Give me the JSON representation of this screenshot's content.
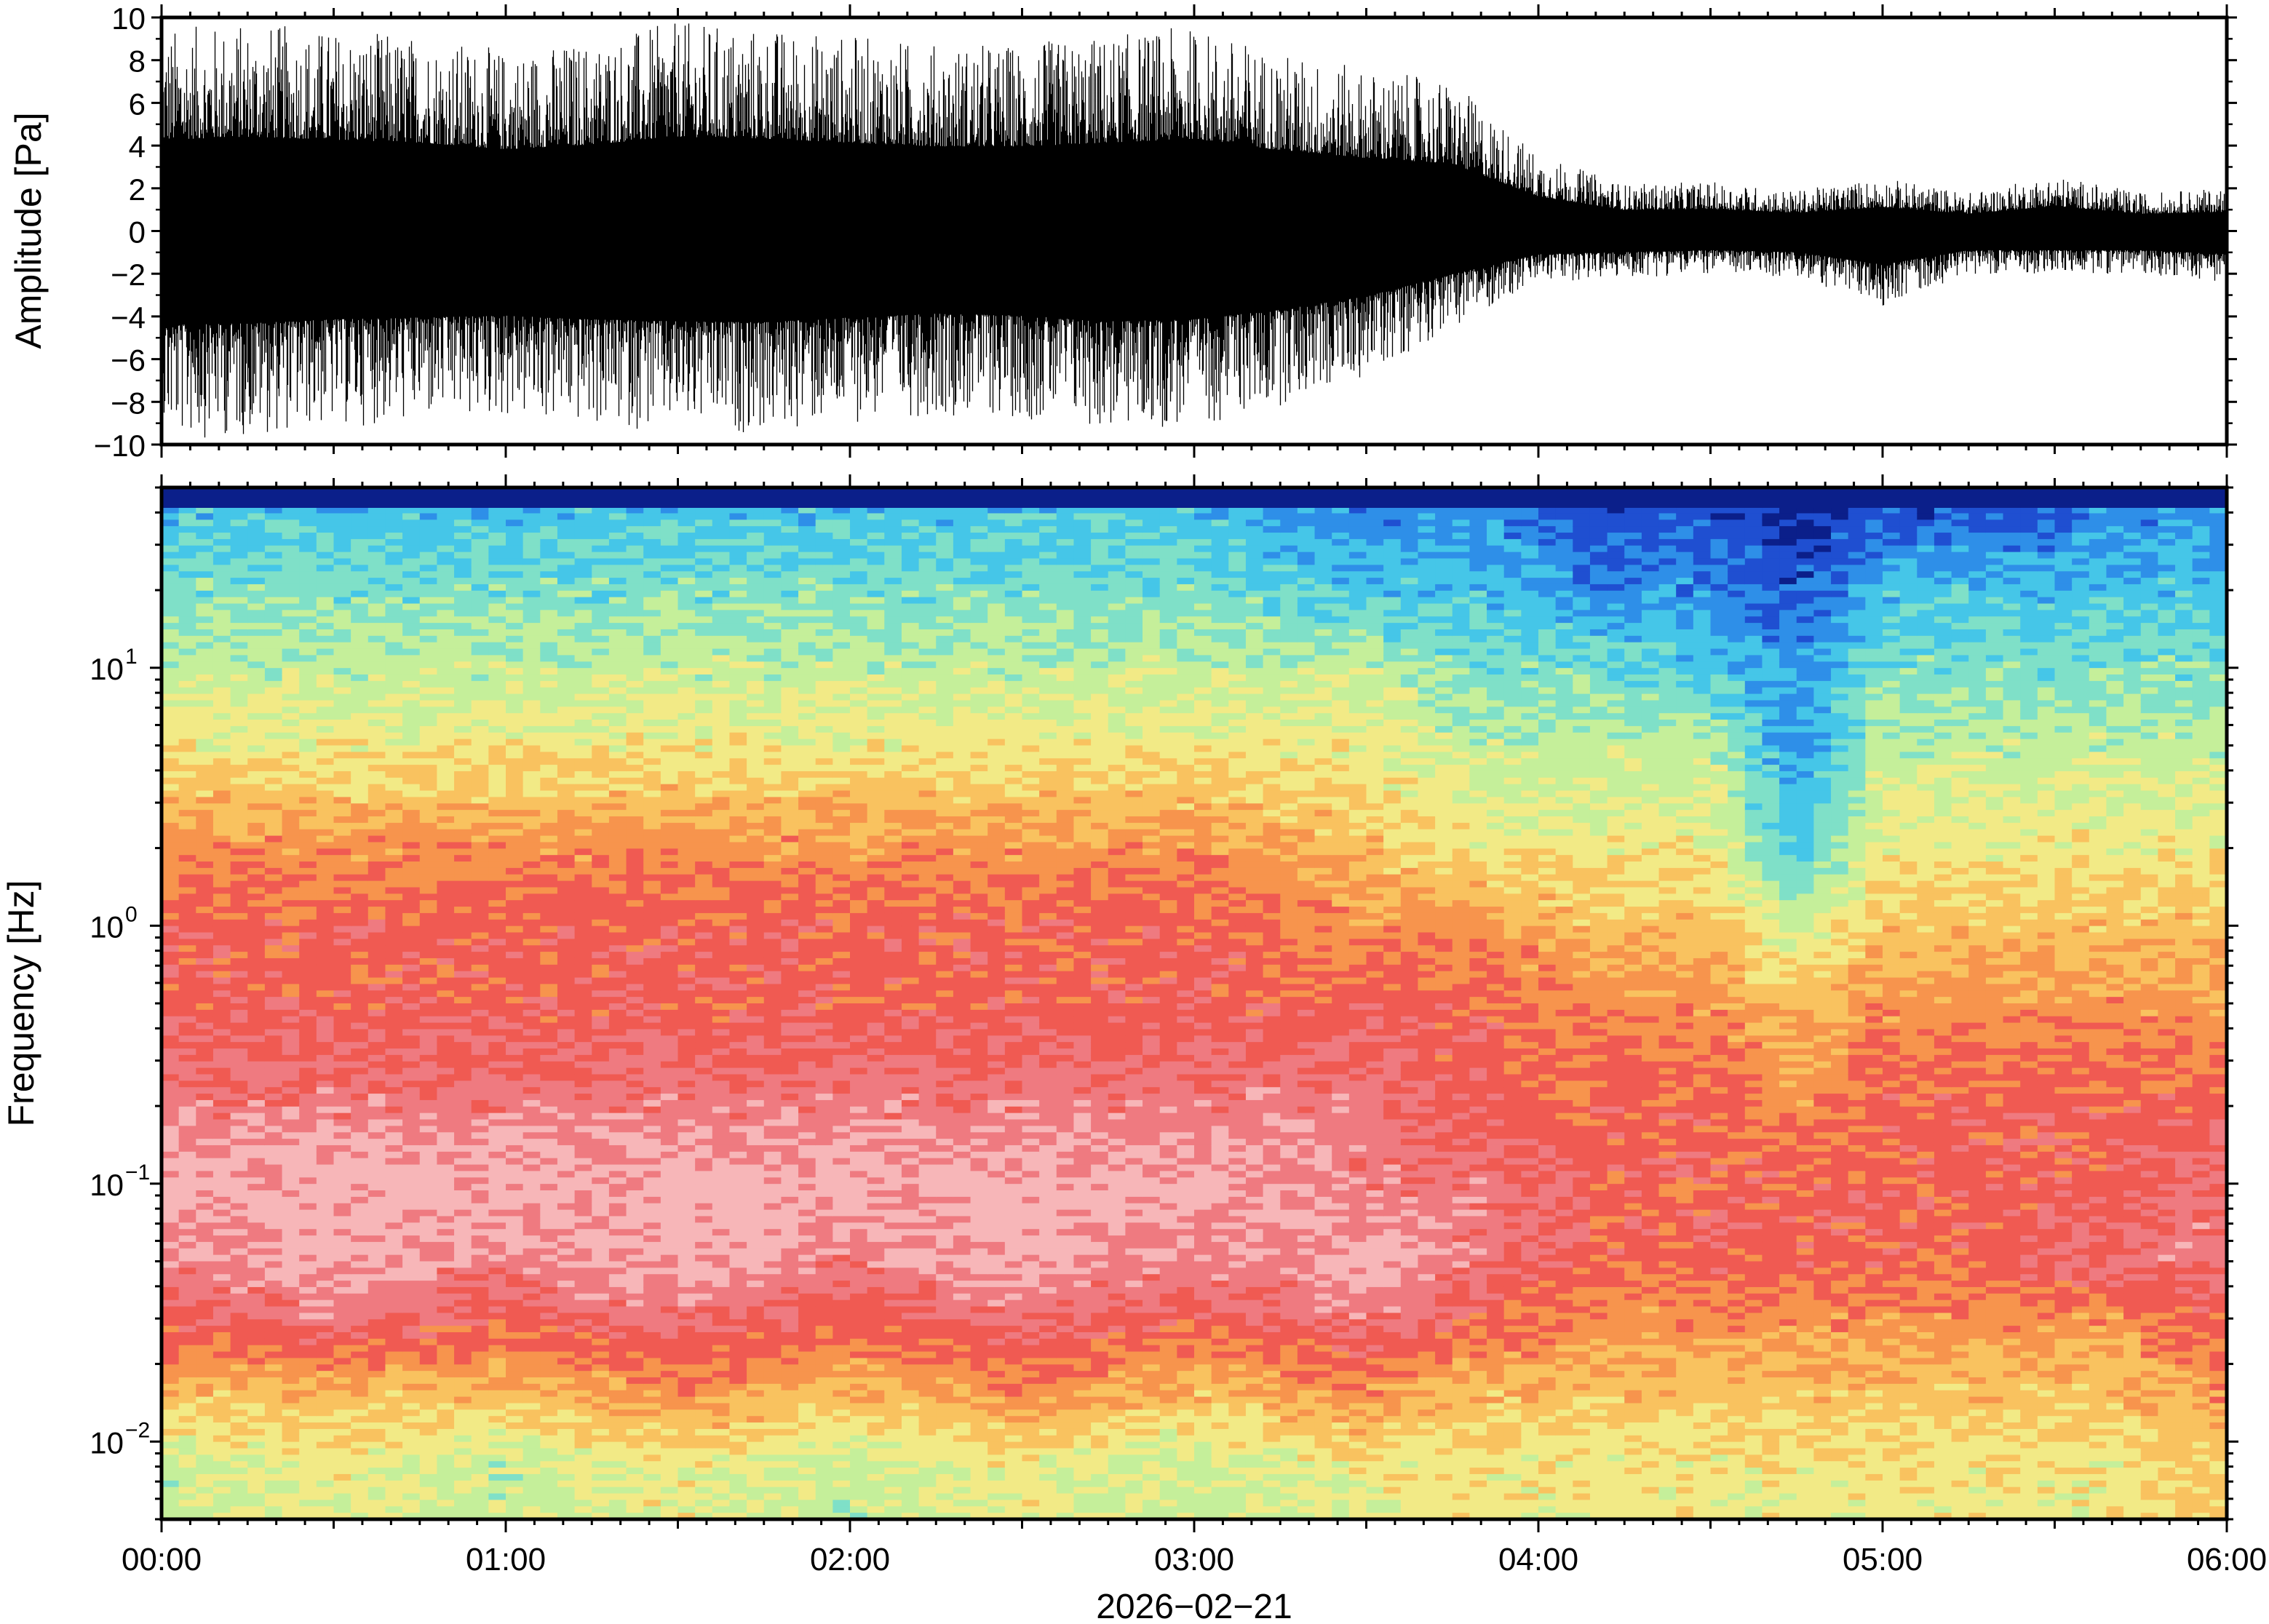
{
  "chart_data": [
    {
      "type": "line",
      "title": "",
      "xlabel": "",
      "ylabel": "Amplitude [Pa]",
      "xlim": [
        "00:00",
        "06:00"
      ],
      "ylim": [
        -10,
        10
      ],
      "yticks": [
        -10,
        -8,
        -6,
        -4,
        -2,
        0,
        2,
        4,
        6,
        8,
        10
      ],
      "ytick_labels": [
        "−10",
        "−8",
        "−6",
        "−4",
        "−2",
        "0",
        "2",
        "4",
        "6",
        "8",
        "10"
      ],
      "grid": false,
      "series": [
        {
          "x": [
            "00:00",
            "00:15",
            "00:30",
            "00:45",
            "01:00",
            "01:15",
            "01:30",
            "01:45",
            "02:00",
            "02:15",
            "02:30",
            "02:45",
            "03:00",
            "03:15",
            "03:30",
            "03:45",
            "04:00",
            "04:15",
            "04:30",
            "04:45",
            "05:00",
            "05:15",
            "05:30",
            "05:45",
            "06:00"
          ],
          "envelope_max": [
            9.5,
            9.8,
            9.5,
            9.2,
            8.5,
            9.0,
            9.8,
            9.6,
            9.2,
            8.8,
            8.8,
            9.2,
            9.6,
            8.4,
            7.6,
            7.0,
            3.6,
            2.2,
            2.3,
            1.9,
            2.5,
            1.8,
            2.6,
            1.8,
            2.0
          ],
          "envelope_min": [
            -9.8,
            -9.6,
            -9.2,
            -9.0,
            -8.8,
            -9.2,
            -9.4,
            -9.5,
            -9.0,
            -8.6,
            -8.8,
            -9.4,
            -9.2,
            -8.2,
            -6.8,
            -4.5,
            -2.4,
            -2.2,
            -2.0,
            -2.2,
            -3.5,
            -2.0,
            -2.0,
            -2.0,
            -2.4
          ]
        }
      ]
    },
    {
      "type": "heatmap",
      "title": "",
      "xlabel": "2026−02−21",
      "ylabel": "Frequency [Hz]",
      "xlim": [
        "00:00",
        "06:00"
      ],
      "ylim": [
        0.005,
        50
      ],
      "yscale": "log",
      "xticks": [
        "00:00",
        "01:00",
        "02:00",
        "03:00",
        "04:00",
        "05:00",
        "06:00"
      ],
      "yticks": [
        {
          "value": 10,
          "base": "10",
          "exp": "1"
        },
        {
          "value": 1,
          "base": "10",
          "exp": "0"
        },
        {
          "value": 0.1,
          "base": "10",
          "exp": "−1"
        },
        {
          "value": 0.01,
          "base": "10",
          "exp": "−2"
        }
      ],
      "colormap": [
        "#0b1f8a",
        "#1f4fd1",
        "#2e8fe8",
        "#45c6e8",
        "#7fe0c8",
        "#c5ef9a",
        "#f2ea86",
        "#f9c25f",
        "#f7944d",
        "#f05a52",
        "#ef7a80",
        "#f7b6b8"
      ],
      "levels_description": "index into colormap (0=lowest power, 11=highest)",
      "x": [
        "00:00",
        "00:30",
        "01:00",
        "01:30",
        "02:00",
        "02:30",
        "03:00",
        "03:30",
        "03:50",
        "04:10",
        "04:30",
        "04:45",
        "05:00",
        "05:20",
        "05:40",
        "06:00"
      ],
      "frequencies": [
        40,
        20,
        10,
        5,
        2,
        1,
        0.5,
        0.2,
        0.1,
        0.05,
        0.03,
        0.015,
        0.008
      ],
      "levels": [
        [
          3,
          3,
          3,
          3,
          3,
          3,
          3,
          2,
          2,
          1,
          1,
          0,
          1,
          1,
          2,
          2
        ],
        [
          4,
          4,
          4,
          4,
          4,
          4,
          4,
          3,
          3,
          2,
          2,
          1,
          3,
          3,
          3,
          3
        ],
        [
          5,
          5,
          5,
          5,
          5,
          5,
          5,
          5,
          4,
          4,
          3,
          2,
          4,
          4,
          4,
          4
        ],
        [
          6,
          6,
          6,
          6,
          6,
          6,
          6,
          6,
          5,
          5,
          5,
          2,
          5,
          5,
          5,
          5
        ],
        [
          8,
          8,
          8,
          8,
          8,
          8,
          8,
          7,
          6,
          6,
          6,
          3,
          6,
          6,
          6,
          6
        ],
        [
          9,
          9,
          9,
          9,
          9,
          9,
          9,
          8,
          8,
          7,
          7,
          5,
          7,
          7,
          7,
          7
        ],
        [
          9,
          9,
          9,
          9,
          9,
          9,
          9,
          9,
          9,
          8,
          8,
          7,
          8,
          8,
          8,
          8
        ],
        [
          10,
          10,
          10,
          10,
          10,
          10,
          10,
          10,
          9,
          9,
          9,
          8,
          9,
          9,
          9,
          9
        ],
        [
          11,
          11,
          11,
          11,
          11,
          11,
          11,
          10,
          10,
          9,
          9,
          9,
          9,
          9,
          9,
          10
        ],
        [
          10,
          11,
          10,
          11,
          10,
          11,
          10,
          11,
          10,
          9,
          9,
          9,
          9,
          9,
          10,
          10
        ],
        [
          9,
          10,
          9,
          10,
          9,
          10,
          9,
          10,
          9,
          8,
          8,
          8,
          8,
          8,
          8,
          9
        ],
        [
          7,
          7,
          7,
          8,
          7,
          8,
          7,
          8,
          7,
          7,
          7,
          7,
          7,
          7,
          7,
          8
        ],
        [
          5,
          6,
          5,
          6,
          5,
          6,
          5,
          6,
          6,
          6,
          6,
          6,
          6,
          6,
          6,
          7
        ]
      ]
    }
  ]
}
